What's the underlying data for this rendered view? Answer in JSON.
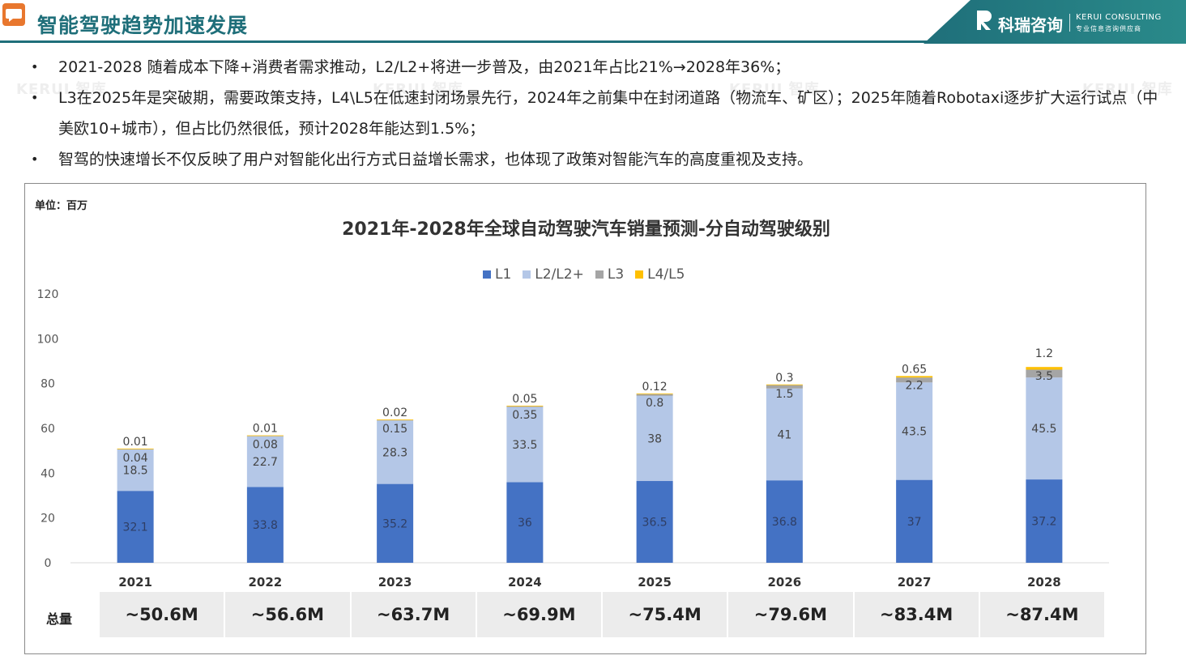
{
  "header": {
    "title": "智能驾驶趋势加速发展",
    "logo_cn": "科瑞咨询",
    "logo_en": "KERUI CONSULTING",
    "logo_sub": "专业信息咨询供应商"
  },
  "watermark": "KERUI 智库",
  "bullets": [
    "2021-2028 随着成本下降+消费者需求推动，L2/L2+将进一步普及，由2021年占比21%→2028年36%；",
    "L3在2025年是突破期，需要政策支持，L4\\L5在低速封闭场景先行，2024年之前集中在封闭道路（物流车、矿区）；2025年随着Robotaxi逐步扩大运行试点（中美欧10+城市），但占比仍然很低，预计2028年能达到1.5%；",
    "智驾的快速增长不仅反映了用户对智能化出行方式日益增长需求，也体现了政策对智能汽车的高度重视及支持。"
  ],
  "chart_data": {
    "type": "bar",
    "stacked": true,
    "unit_label": "单位：百万",
    "title": "2021年-2028年全球自动驾驶汽车销量预测-分自动驾驶级别",
    "categories": [
      "2021",
      "2022",
      "2023",
      "2024",
      "2025",
      "2026",
      "2027",
      "2028"
    ],
    "series": [
      {
        "name": "L1",
        "color": "#4472c4",
        "values": [
          32.1,
          33.8,
          35.2,
          36,
          36.5,
          36.8,
          37,
          37.2
        ],
        "labels": [
          "32.1",
          "33.8",
          "35.2",
          "36",
          "36.5",
          "36.8",
          "37",
          "37.2"
        ]
      },
      {
        "name": "L2/L2+",
        "color": "#b4c7e7",
        "values": [
          18.5,
          22.7,
          28.3,
          33.5,
          38,
          41,
          43.5,
          45.5
        ],
        "labels": [
          "18.5",
          "22.7",
          "28.3",
          "33.5",
          "38",
          "41",
          "43.5",
          "45.5"
        ]
      },
      {
        "name": "L3",
        "color": "#a5a5a5",
        "values": [
          0.04,
          0.08,
          0.15,
          0.35,
          0.8,
          1.5,
          2.2,
          3.5
        ],
        "labels": [
          "0.04",
          "0.08",
          "0.15",
          "0.35",
          "0.8",
          "1.5",
          "2.2",
          "3.5"
        ]
      },
      {
        "name": "L4/L5",
        "color": "#ffc000",
        "values": [
          0.01,
          0.01,
          0.02,
          0.05,
          0.12,
          0.3,
          0.65,
          1.2
        ],
        "labels": [
          "0.01",
          "0.01",
          "0.02",
          "0.05",
          "0.12",
          "0.3",
          "0.65",
          "1.2"
        ]
      }
    ],
    "ylim": [
      0,
      120
    ],
    "yticks": [
      "0",
      "20",
      "40",
      "60",
      "80",
      "100",
      "120"
    ],
    "legend_position": "top",
    "grid": false,
    "totals_label": "总量",
    "totals": [
      "~50.6M",
      "~56.6M",
      "~63.7M",
      "~69.9M",
      "~75.4M",
      "~79.6M",
      "~83.4M",
      "~87.4M"
    ]
  }
}
